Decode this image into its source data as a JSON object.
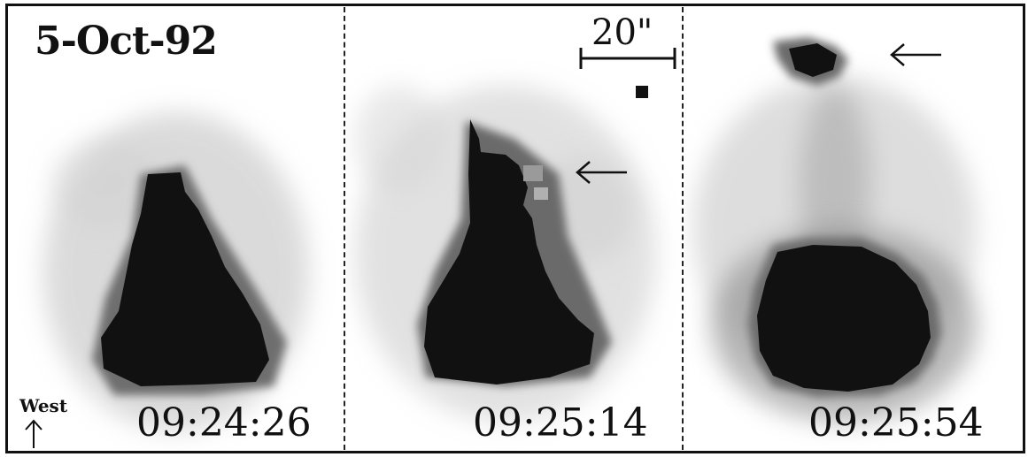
{
  "figure": {
    "date_label": "5-Oct-92",
    "scale_label": "20\"",
    "orientation_label": "West",
    "panels": [
      {
        "time": "09:24:26"
      },
      {
        "time": "09:25:14"
      },
      {
        "time": "09:25:54"
      }
    ]
  },
  "colors": {
    "ink": "#111111",
    "background": "#ffffff"
  },
  "icons": [
    "up-arrow-icon",
    "left-arrow-icon"
  ]
}
